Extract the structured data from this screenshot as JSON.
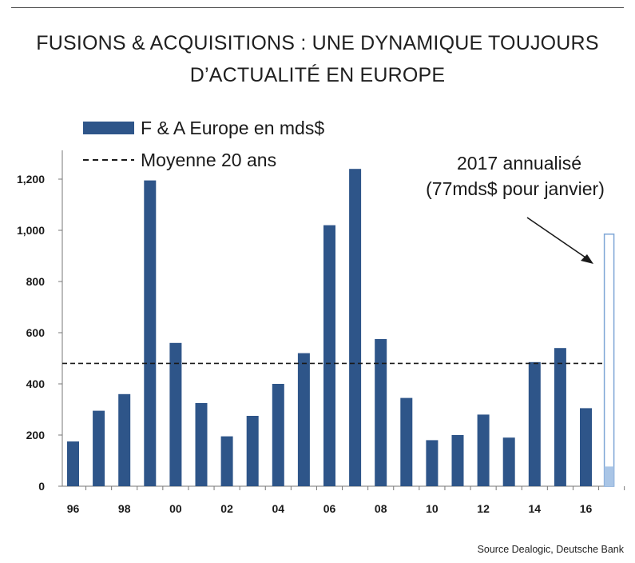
{
  "title": {
    "line1": "FUSIONS & ACQUISITIONS : UNE DYNAMIQUE TOUJOURS",
    "line2": "D’ACTUALITÉ EN EUROPE"
  },
  "source": "Source Dealogic, Deutsche Bank",
  "colors": {
    "bar": "#2e5589",
    "bar_2017_fill": "#a9c5e6",
    "bar_2017_outline": "#7ea6d6",
    "average_line": "#1a1a1a"
  },
  "chart_data": {
    "type": "bar",
    "categories": [
      "1996",
      "1997",
      "1998",
      "1999",
      "2000",
      "2001",
      "2002",
      "2003",
      "2004",
      "2005",
      "2006",
      "2007",
      "2008",
      "2009",
      "2010",
      "2011",
      "2012",
      "2013",
      "2014",
      "2015",
      "2016",
      "2017"
    ],
    "tick_labels": [
      "96",
      "",
      "98",
      "",
      "00",
      "",
      "02",
      "",
      "04",
      "",
      "06",
      "",
      "08",
      "",
      "10",
      "",
      "12",
      "",
      "14",
      "",
      "16",
      ""
    ],
    "series": [
      {
        "name": "F & A Europe en mds$",
        "values": [
          175,
          295,
          360,
          1195,
          560,
          325,
          195,
          275,
          400,
          520,
          1020,
          1240,
          575,
          345,
          180,
          200,
          280,
          190,
          485,
          540,
          305,
          null
        ]
      }
    ],
    "annualized_2017": {
      "category": "2017",
      "annualized_value": 985,
      "january_value": 77
    },
    "average_line": {
      "name": "Moyenne 20 ans",
      "value": 480
    },
    "ylim": [
      0,
      1250
    ],
    "yticks": [
      0,
      200,
      400,
      600,
      800,
      1000,
      1200
    ],
    "ytick_labels": [
      "0",
      "200",
      "400",
      "600",
      "800",
      "1,000",
      "1,200"
    ],
    "legend": [
      {
        "label": "F & A Europe en mds$",
        "style": "bar"
      },
      {
        "label": "Moyenne 20 ans",
        "style": "dashed"
      }
    ],
    "legend_position": "top-left",
    "annotation": {
      "line1": "2017 annualisé",
      "line2": "(77mds$ pour janvier)"
    },
    "grid": false,
    "xlabel": "",
    "ylabel": ""
  }
}
